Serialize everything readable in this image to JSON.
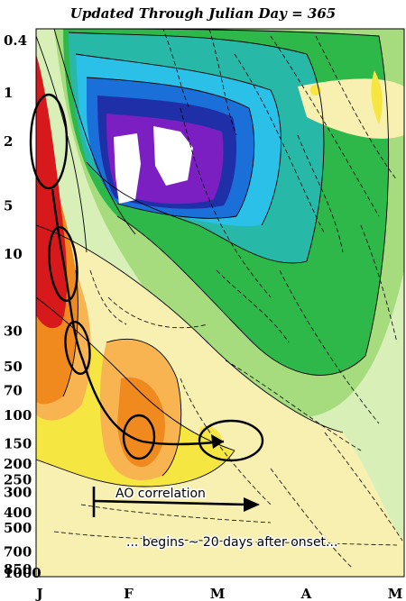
{
  "chart_data": {
    "type": "heatmap",
    "title": "Updated Through Julian Day = 365",
    "xlabel": "",
    "ylabel": "",
    "x_ticks": [
      "J",
      "F",
      "M",
      "A",
      "M"
    ],
    "y_ticks": [
      "0.4",
      "1",
      "2",
      "5",
      "10",
      "30",
      "50",
      "70",
      "100",
      "150",
      "200",
      "250",
      "300",
      "400",
      "500",
      "700",
      "850",
      "1000"
    ],
    "y_scale": "log",
    "y_inverted": true,
    "ylim": [
      0.4,
      1000
    ],
    "grid": false,
    "annotations": [
      {
        "text": "AO correlation",
        "kind": "label"
      },
      {
        "text": "... begins ~ 20 days after onset...",
        "kind": "label"
      }
    ],
    "colors": {
      "deep_red": "#d7191c",
      "orange": "#f08a1e",
      "light_orange": "#f7b451",
      "yellow": "#f5e642",
      "pale_yellow": "#f8f0b0",
      "pale_green": "#d9efb8",
      "light_green": "#a6dc7e",
      "green": "#2fb84a",
      "teal": "#27b8a8",
      "cyan": "#2ac0e8",
      "blue": "#1a6fd8",
      "dark_blue": "#1f2fa8",
      "purple": "#7b1fc2",
      "white": "#ffffff"
    }
  }
}
